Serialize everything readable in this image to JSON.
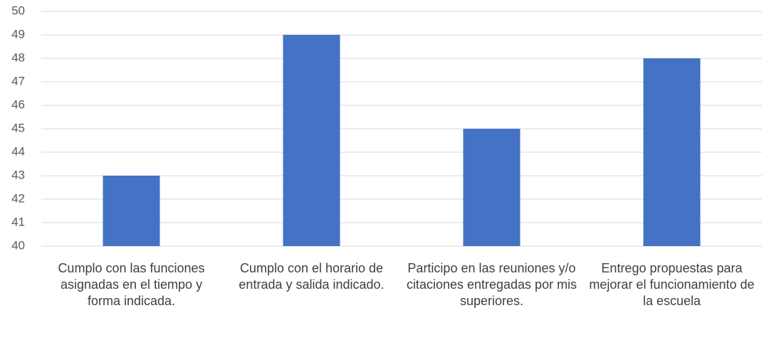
{
  "chart_data": {
    "type": "bar",
    "categories": [
      "Cumplo con las funciones asignadas en el tiempo y forma indicada.",
      "Cumplo con el horario de entrada y salida indicado.",
      "Participo en las reuniones y/o citaciones entregadas por mis superiores.",
      "Entrego propuestas para mejorar el funcionamiento de la escuela"
    ],
    "values": [
      43,
      49,
      45,
      48
    ],
    "color": "#4472c4",
    "ylim": [
      40,
      50
    ],
    "yticks": [
      40,
      41,
      42,
      43,
      44,
      45,
      46,
      47,
      48,
      49,
      50
    ],
    "grid": true
  }
}
